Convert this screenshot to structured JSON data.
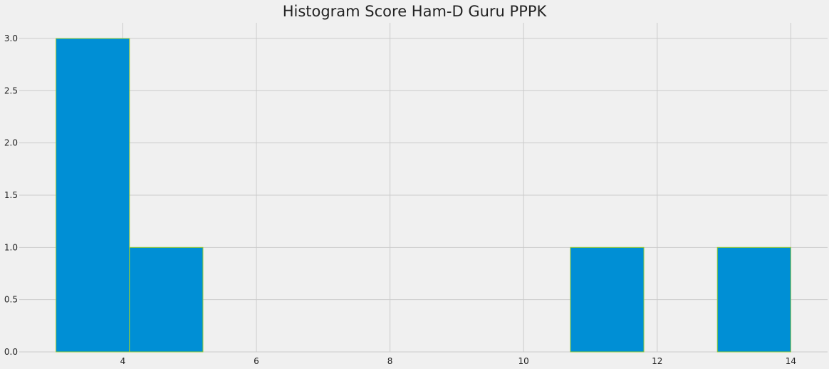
{
  "chart_data": {
    "type": "bar",
    "title": "Histogram Score Ham-D Guru PPPK",
    "xlabel": "",
    "ylabel": "",
    "bins": [
      {
        "start": 3.0,
        "end": 4.1,
        "count": 3
      },
      {
        "start": 4.1,
        "end": 5.2,
        "count": 1
      },
      {
        "start": 5.2,
        "end": 6.3,
        "count": 0
      },
      {
        "start": 6.3,
        "end": 7.4,
        "count": 0
      },
      {
        "start": 7.4,
        "end": 8.5,
        "count": 0
      },
      {
        "start": 8.5,
        "end": 9.6,
        "count": 0
      },
      {
        "start": 9.6,
        "end": 10.7,
        "count": 0
      },
      {
        "start": 10.7,
        "end": 11.8,
        "count": 1
      },
      {
        "start": 11.8,
        "end": 12.9,
        "count": 0
      },
      {
        "start": 12.9,
        "end": 14.0,
        "count": 1
      }
    ],
    "xlim": [
      2.45,
      14.55
    ],
    "ylim": [
      0,
      3.15
    ],
    "x_ticks": [
      4,
      6,
      8,
      10,
      12,
      14
    ],
    "y_ticks": [
      0.0,
      0.5,
      1.0,
      1.5,
      2.0,
      2.5,
      3.0
    ],
    "grid": true,
    "bar_color": "#008fd5",
    "edge_color": "#9acd32",
    "grid_color": "#cbcbcb",
    "background": "#f0f0f0"
  }
}
